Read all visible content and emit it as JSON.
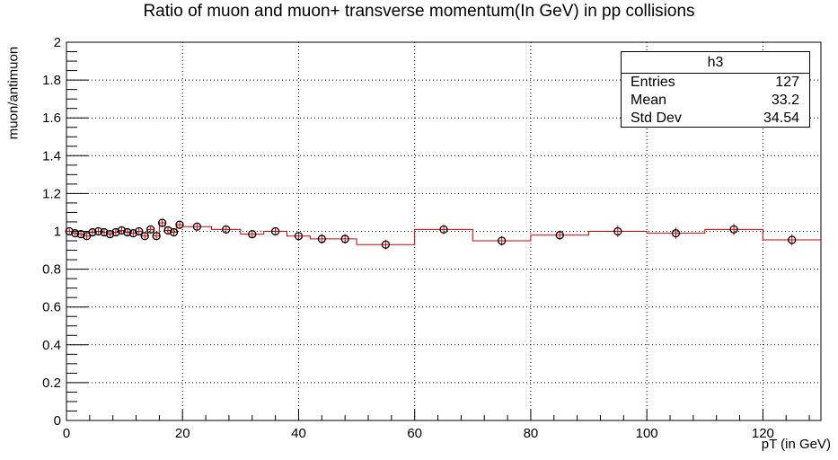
{
  "chart_data": {
    "type": "scatter",
    "title": "Ratio of muon and muon+ transverse momentum(In GeV) in pp collisions",
    "xlabel": "pT (in GeV)",
    "ylabel": "muon/antimuon",
    "xlim": [
      0,
      130
    ],
    "ylim": [
      0,
      2
    ],
    "xticks": [
      "0",
      "20",
      "40",
      "60",
      "80",
      "100",
      "120"
    ],
    "yticks": [
      "0",
      "0.2",
      "0.4",
      "0.6",
      "0.8",
      "1",
      "1.2",
      "1.4",
      "1.6",
      "1.8",
      "2"
    ],
    "grid": true,
    "colors": {
      "histogram": "#d40000",
      "markers": "#000000"
    },
    "bins": [
      {
        "lo": 0,
        "hi": 1,
        "y": 1.0,
        "err": 0.015
      },
      {
        "lo": 1,
        "hi": 2,
        "y": 0.99,
        "err": 0.015
      },
      {
        "lo": 2,
        "hi": 3,
        "y": 0.985,
        "err": 0.015
      },
      {
        "lo": 3,
        "hi": 4,
        "y": 0.975,
        "err": 0.015
      },
      {
        "lo": 4,
        "hi": 5,
        "y": 0.995,
        "err": 0.015
      },
      {
        "lo": 5,
        "hi": 6,
        "y": 1.0,
        "err": 0.015
      },
      {
        "lo": 6,
        "hi": 7,
        "y": 0.995,
        "err": 0.015
      },
      {
        "lo": 7,
        "hi": 8,
        "y": 0.985,
        "err": 0.015
      },
      {
        "lo": 8,
        "hi": 9,
        "y": 0.995,
        "err": 0.015
      },
      {
        "lo": 9,
        "hi": 10,
        "y": 1.005,
        "err": 0.015
      },
      {
        "lo": 10,
        "hi": 11,
        "y": 0.995,
        "err": 0.015
      },
      {
        "lo": 11,
        "hi": 12,
        "y": 0.99,
        "err": 0.015
      },
      {
        "lo": 12,
        "hi": 13,
        "y": 1.0,
        "err": 0.02
      },
      {
        "lo": 13,
        "hi": 14,
        "y": 0.975,
        "err": 0.02
      },
      {
        "lo": 14,
        "hi": 15,
        "y": 1.01,
        "err": 0.02
      },
      {
        "lo": 15,
        "hi": 16,
        "y": 0.975,
        "err": 0.02
      },
      {
        "lo": 16,
        "hi": 17,
        "y": 1.045,
        "err": 0.02
      },
      {
        "lo": 17,
        "hi": 18,
        "y": 1.005,
        "err": 0.02
      },
      {
        "lo": 18,
        "hi": 19,
        "y": 0.995,
        "err": 0.02
      },
      {
        "lo": 19,
        "hi": 20,
        "y": 1.035,
        "err": 0.02
      },
      {
        "lo": 20,
        "hi": 25,
        "y": 1.025,
        "err": 0.02
      },
      {
        "lo": 25,
        "hi": 30,
        "y": 1.01,
        "err": 0.02
      },
      {
        "lo": 30,
        "hi": 34,
        "y": 0.985,
        "err": 0.02
      },
      {
        "lo": 34,
        "hi": 38,
        "y": 1.0,
        "err": 0.02
      },
      {
        "lo": 38,
        "hi": 42,
        "y": 0.975,
        "err": 0.02
      },
      {
        "lo": 42,
        "hi": 46,
        "y": 0.96,
        "err": 0.025
      },
      {
        "lo": 46,
        "hi": 50,
        "y": 0.96,
        "err": 0.025
      },
      {
        "lo": 50,
        "hi": 60,
        "y": 0.93,
        "err": 0.025
      },
      {
        "lo": 60,
        "hi": 70,
        "y": 1.01,
        "err": 0.025
      },
      {
        "lo": 70,
        "hi": 80,
        "y": 0.95,
        "err": 0.025
      },
      {
        "lo": 80,
        "hi": 90,
        "y": 0.98,
        "err": 0.025
      },
      {
        "lo": 90,
        "hi": 100,
        "y": 1.0,
        "err": 0.03
      },
      {
        "lo": 100,
        "hi": 110,
        "y": 0.99,
        "err": 0.03
      },
      {
        "lo": 110,
        "hi": 120,
        "y": 1.01,
        "err": 0.03
      },
      {
        "lo": 120,
        "hi": 130,
        "y": 0.955,
        "err": 0.03
      }
    ]
  },
  "stats_box": {
    "name": "h3",
    "rows": [
      {
        "key": "Entries",
        "value": "127"
      },
      {
        "key": "Mean",
        "value": "33.2"
      },
      {
        "key": "Std Dev",
        "value": "34.54"
      }
    ]
  }
}
